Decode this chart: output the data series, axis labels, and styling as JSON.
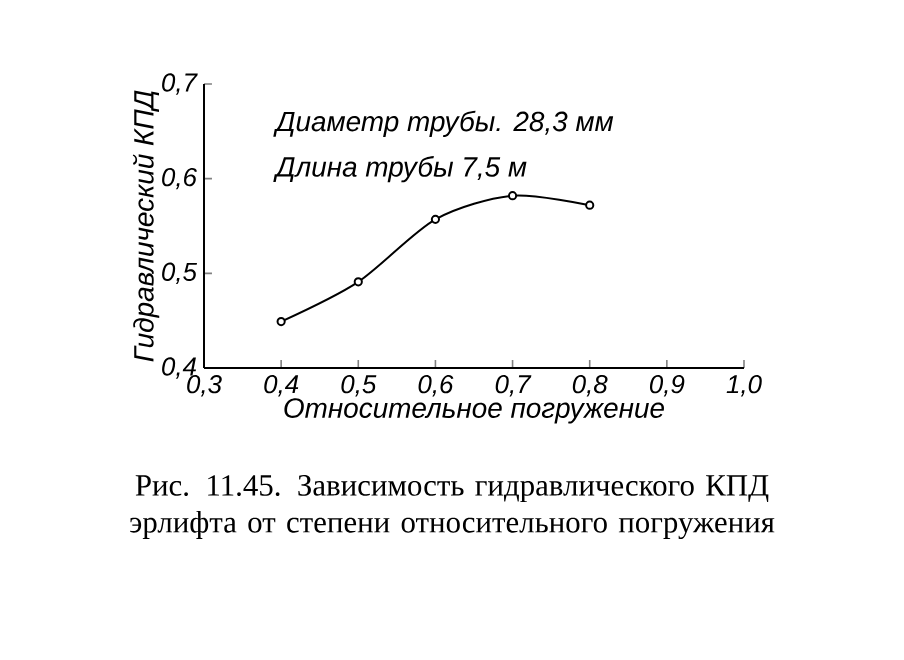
{
  "chart_data": {
    "type": "line",
    "xlabel": "Относительное погружение",
    "ylabel": "Гидравлический КПД",
    "x": [
      0.4,
      0.5,
      0.6,
      0.7,
      0.8
    ],
    "series": [
      {
        "color": "#000000",
        "values": [
          0.449,
          0.491,
          0.557,
          0.582,
          0.572
        ]
      }
    ],
    "marker": "circle",
    "line_style": "solid",
    "xlim": [
      0.3,
      1.0
    ],
    "ylim": [
      0.4,
      0.7
    ],
    "xticks": [
      {
        "value": 0.3,
        "label": "0,3"
      },
      {
        "value": 0.4,
        "label": "0,4"
      },
      {
        "value": 0.5,
        "label": "0,5"
      },
      {
        "value": 0.6,
        "label": "0,6"
      },
      {
        "value": 0.7,
        "label": "0,7"
      },
      {
        "value": 0.8,
        "label": "0,8"
      },
      {
        "value": 0.9,
        "label": "0,9"
      },
      {
        "value": 1.0,
        "label": "1,0"
      }
    ],
    "yticks": [
      {
        "value": 0.4,
        "label": "0,4"
      },
      {
        "value": 0.5,
        "label": "0,5"
      },
      {
        "value": 0.6,
        "label": "0,6"
      },
      {
        "value": 0.7,
        "label": "0,7"
      }
    ],
    "annotations": [
      "Диаметр трубы. 28,3 мм",
      "Длина трубы 7,5 м",
      "Рис. 11.45. Зависимость гидравлического КПД эрлифта от степени относительного погружения"
    ]
  }
}
